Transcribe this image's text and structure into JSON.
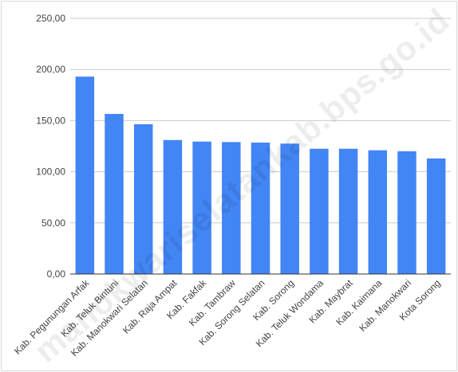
{
  "chart_data": {
    "type": "bar",
    "categories": [
      "Kab. Pegunungan Arfak",
      "Kab. Teluk Bintuni",
      "Kab. Manokwari Selatan",
      "Kab. Raja Ampat",
      "Kab. Fakfak",
      "Kab. Tambraw",
      "Kab. Sorong Selatan",
      "Kab. Sorong",
      "Kab. Teluk Wondama",
      "Kab. Maybrat",
      "Kab. Kaimana",
      "Kab. Manokwari",
      "Kota Sorong"
    ],
    "values": [
      193.0,
      156.5,
      146.5,
      131.0,
      129.5,
      129.0,
      128.5,
      127.5,
      122.5,
      122.5,
      121.0,
      120.0,
      113.0
    ],
    "ylim": [
      0,
      250
    ],
    "yticks": [
      0,
      50,
      100,
      150,
      200,
      250
    ],
    "ytick_labels": [
      "0,00",
      "50,00",
      "100,00",
      "150,00",
      "200,00",
      "250,00"
    ],
    "title": "",
    "xlabel": "",
    "ylabel": "",
    "grid": true,
    "bar_color": "#4285f4",
    "grid_color": "#cccccc",
    "watermark": "manokwariselatankab.bps.go.id"
  }
}
